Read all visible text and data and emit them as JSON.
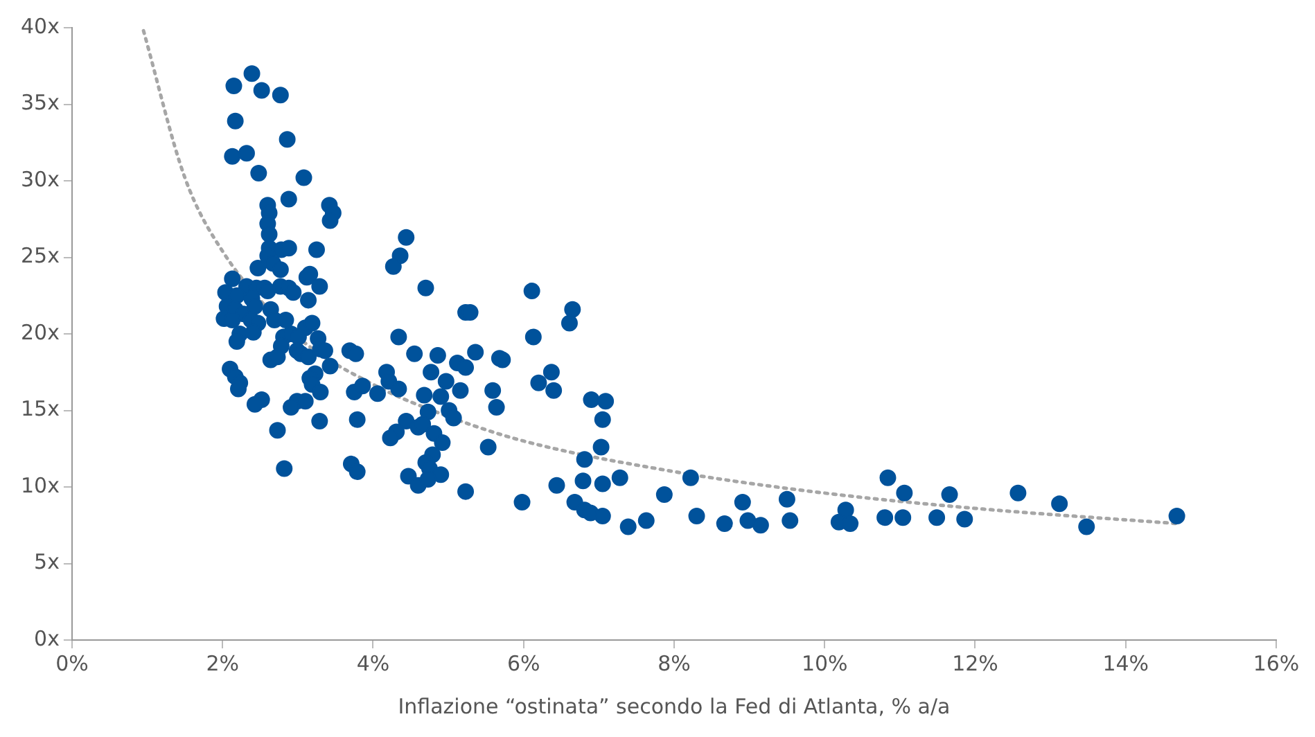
{
  "chart_data": {
    "type": "scatter",
    "xlabel": "Inflazione “ostinata” secondo la Fed di Atlanta, % a/a",
    "xlim": [
      0,
      16
    ],
    "ylim": [
      0,
      40
    ],
    "xticks": [
      {
        "value": 0,
        "label": "0%"
      },
      {
        "value": 2,
        "label": "2%"
      },
      {
        "value": 4,
        "label": "4%"
      },
      {
        "value": 6,
        "label": "6%"
      },
      {
        "value": 8,
        "label": "8%"
      },
      {
        "value": 10,
        "label": "10%"
      },
      {
        "value": 12,
        "label": "12%"
      },
      {
        "value": 14,
        "label": "14%"
      },
      {
        "value": 16,
        "label": "16%"
      }
    ],
    "yticks": [
      {
        "value": 0,
        "label": "0x"
      },
      {
        "value": 5,
        "label": "5x"
      },
      {
        "value": 10,
        "label": "10x"
      },
      {
        "value": 15,
        "label": "15x"
      },
      {
        "value": 20,
        "label": "20x"
      },
      {
        "value": 25,
        "label": "25x"
      },
      {
        "value": 30,
        "label": "30x"
      },
      {
        "value": 35,
        "label": "35x"
      },
      {
        "value": 40,
        "label": "40x"
      }
    ],
    "grid": false,
    "legend": false,
    "marker": "circle",
    "series": [
      {
        "color": "#00529b",
        "x": [
          2.15,
          2.39,
          2.52,
          2.77,
          2.17,
          2.13,
          2.32,
          2.48,
          2.86,
          3.08,
          2.6,
          2.88,
          3.42,
          3.47,
          3.43,
          2.62,
          2.6,
          2.62,
          2.62,
          2.78,
          2.88,
          3.25,
          2.6,
          2.47,
          2.67,
          2.77,
          3.12,
          3.16,
          2.13,
          2.32,
          2.45,
          2.56,
          2.77,
          2.88,
          3.29,
          2.04,
          2.19,
          2.39,
          2.6,
          2.94,
          3.14,
          2.06,
          2.17,
          2.28,
          2.43,
          2.64,
          2.02,
          2.13,
          2.38,
          2.47,
          2.69,
          2.84,
          3.1,
          3.19,
          2.23,
          2.41,
          2.81,
          2.91,
          3.01,
          3.27,
          2.19,
          2.78,
          2.99,
          3.04,
          3.14,
          3.3,
          3.36,
          2.64,
          2.73,
          3.23,
          2.1,
          2.17,
          2.23,
          2.21,
          3.16,
          3.19,
          3.3,
          2.52,
          2.43,
          2.99,
          3.1,
          2.91,
          3.29,
          2.73,
          2.82,
          4.44,
          4.36,
          4.27,
          4.7,
          3.69,
          3.77,
          4.34,
          3.43,
          3.75,
          3.79,
          3.71,
          3.79,
          4.18,
          4.97,
          4.21,
          3.86,
          4.06,
          4.34,
          4.68,
          4.9,
          5.16,
          5.59,
          5.64,
          4.55,
          4.86,
          5.36,
          5.68,
          5.72,
          5.12,
          5.23,
          4.77,
          5.23,
          5.29,
          6.11,
          6.65,
          6.61,
          6.13,
          6.37,
          6.2,
          6.4,
          4.73,
          5.01,
          5.07,
          4.44,
          4.31,
          4.23,
          4.6,
          4.66,
          4.81,
          4.92,
          5.53,
          4.79,
          4.7,
          4.75,
          4.47,
          4.6,
          4.9,
          4.73,
          5.23,
          5.98,
          6.44,
          6.79,
          7.05,
          7.28,
          6.81,
          7.03,
          7.05,
          6.9,
          7.09,
          6.68,
          6.81,
          6.89,
          7.05,
          7.39,
          10.84,
          11.06,
          8.22,
          7.87,
          8.91,
          9.5,
          10.28,
          8.3,
          8.67,
          8.98,
          9.15,
          9.54,
          10.19,
          10.34,
          10.8,
          11.04,
          11.49,
          7.63,
          11.66,
          12.57,
          13.12,
          13.48,
          14.68,
          11.86
        ],
        "values": [
          36.2,
          37.0,
          35.9,
          35.6,
          33.9,
          31.6,
          31.8,
          30.5,
          32.7,
          30.2,
          28.4,
          28.8,
          28.4,
          27.9,
          27.4,
          27.9,
          27.2,
          26.5,
          25.6,
          25.5,
          25.6,
          25.5,
          25.1,
          24.3,
          24.6,
          24.2,
          23.7,
          23.9,
          23.6,
          23.1,
          23.0,
          23.0,
          23.1,
          23.0,
          23.1,
          22.7,
          22.5,
          22.3,
          22.8,
          22.7,
          22.2,
          21.8,
          21.6,
          21.3,
          21.8,
          21.6,
          21.0,
          20.9,
          20.9,
          20.7,
          20.9,
          20.9,
          20.4,
          20.7,
          20.0,
          20.1,
          19.8,
          20.0,
          19.8,
          19.7,
          19.5,
          19.2,
          18.9,
          18.7,
          18.5,
          19.0,
          18.9,
          18.3,
          18.5,
          17.4,
          17.7,
          17.2,
          16.8,
          16.4,
          17.1,
          16.7,
          16.2,
          15.7,
          15.4,
          15.6,
          15.6,
          15.2,
          14.3,
          13.7,
          11.2,
          26.3,
          25.1,
          24.4,
          23.0,
          18.9,
          18.7,
          19.8,
          17.9,
          16.2,
          14.4,
          11.5,
          11.0,
          17.5,
          16.9,
          16.9,
          16.6,
          16.1,
          16.4,
          16.0,
          15.9,
          16.3,
          16.3,
          15.2,
          18.7,
          18.6,
          18.8,
          18.4,
          18.3,
          18.1,
          17.8,
          17.5,
          21.4,
          21.4,
          22.8,
          21.6,
          20.7,
          19.8,
          17.5,
          16.8,
          16.3,
          14.9,
          15.0,
          14.5,
          14.3,
          13.6,
          13.2,
          13.9,
          14.1,
          13.5,
          12.9,
          12.6,
          12.1,
          11.6,
          11.2,
          10.7,
          10.1,
          10.8,
          10.5,
          9.7,
          9.0,
          10.1,
          10.4,
          10.2,
          10.6,
          11.8,
          12.6,
          14.4,
          15.7,
          15.6,
          9.0,
          8.5,
          8.3,
          8.1,
          7.4,
          10.6,
          9.6,
          10.6,
          9.5,
          9.0,
          9.2,
          8.5,
          8.1,
          7.6,
          7.8,
          7.5,
          7.8,
          7.7,
          7.6,
          8.0,
          8.0,
          8.0,
          7.8,
          9.5,
          9.6,
          8.9,
          7.4,
          8.1,
          7.9
        ]
      },
      {
        "type": "line",
        "color": "#a6a6a6",
        "line_style": "dotted",
        "marker": "none",
        "x": [
          0.95,
          1.5,
          2,
          3,
          4,
          5,
          6,
          8,
          10,
          12,
          14.7
        ],
        "values": [
          39.8,
          30.2,
          25.4,
          19.8,
          16.7,
          14.6,
          13.0,
          11.0,
          9.6,
          8.6,
          7.6
        ]
      }
    ]
  }
}
